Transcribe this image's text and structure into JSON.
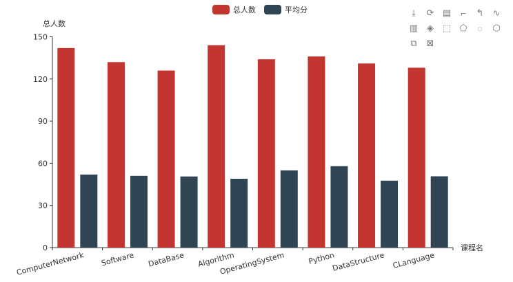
{
  "chart_data": {
    "type": "bar",
    "categories": [
      "ComputerNetwork",
      "Software",
      "DataBase",
      "Algorithm",
      "OperatingSystem",
      "Python",
      "DataStructure",
      "CLanguage"
    ],
    "series": [
      {
        "name": "总人数",
        "color": "#c23531",
        "values": [
          142,
          132,
          126,
          144,
          134,
          136,
          131,
          128
        ]
      },
      {
        "name": "平均分",
        "color": "#2f4554",
        "values": [
          52,
          51,
          50.6,
          49,
          55,
          58,
          47.6,
          50.7
        ]
      }
    ],
    "xlabel": "课程名",
    "ylabel": "总人数",
    "ylim": [
      0,
      150
    ],
    "yticks": [
      "0",
      "30",
      "60",
      "90",
      "120",
      "150"
    ],
    "legend_position": "top-center",
    "grid": false
  },
  "toolbox": [
    "download-icon",
    "refresh-icon",
    "data-view-icon",
    "zoom-icon",
    "zoom-reset-icon",
    "line-icon",
    "bar-icon",
    "stack-icon",
    "rect-select-icon",
    "polygon-select-icon",
    "keep-select-icon",
    "clear-select-icon",
    "tiled-icon",
    "clear-icon"
  ]
}
